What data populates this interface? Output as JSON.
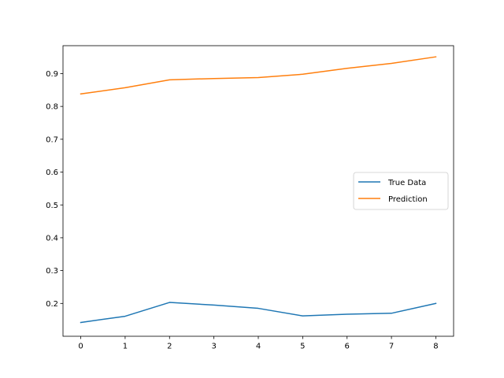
{
  "chart_data": {
    "type": "line",
    "title": "",
    "xlabel": "",
    "ylabel": "",
    "x": [
      0,
      1,
      2,
      3,
      4,
      5,
      6,
      7,
      8
    ],
    "xlim": [
      -0.4,
      8.4
    ],
    "ylim": [
      0.1,
      0.985
    ],
    "xticks": [
      0,
      1,
      2,
      3,
      4,
      5,
      6,
      7,
      8
    ],
    "yticks": [
      0.2,
      0.3,
      0.4,
      0.5,
      0.6,
      0.7,
      0.8,
      0.9
    ],
    "xtick_labels": [
      "0",
      "1",
      "2",
      "3",
      "4",
      "5",
      "6",
      "7",
      "8"
    ],
    "ytick_labels": [
      "0.2",
      "0.3",
      "0.4",
      "0.5",
      "0.6",
      "0.7",
      "0.8",
      "0.9"
    ],
    "grid": false,
    "legend_position": "center-right",
    "series": [
      {
        "name": "True Data",
        "color": "#1f77b4",
        "values": [
          0.142,
          0.161,
          0.203,
          0.195,
          0.185,
          0.162,
          0.167,
          0.17,
          0.2
        ]
      },
      {
        "name": "Prediction",
        "color": "#ff7f0e",
        "values": [
          0.838,
          0.857,
          0.881,
          0.885,
          0.888,
          0.898,
          0.916,
          0.931,
          0.951
        ]
      }
    ]
  }
}
